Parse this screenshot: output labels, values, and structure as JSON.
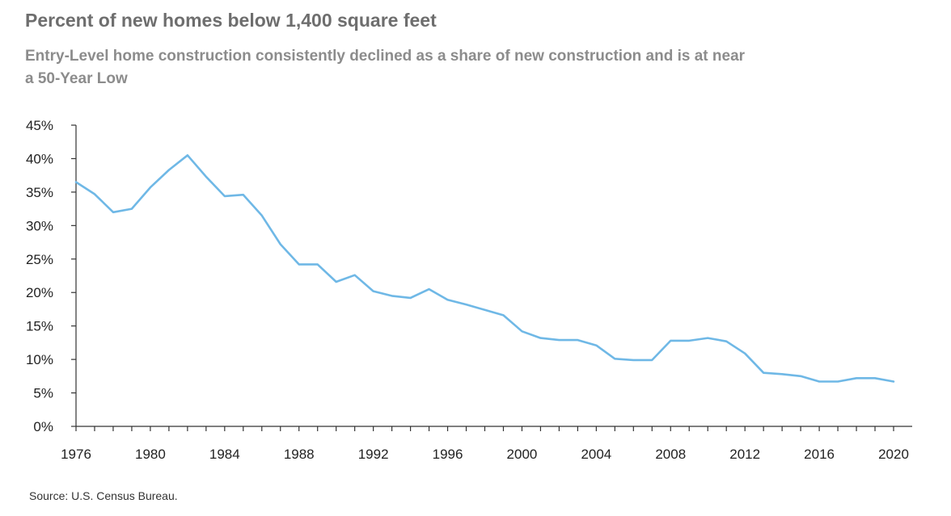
{
  "title": "Percent of new homes below 1,400 square feet",
  "subtitle": "Entry-Level home construction consistently declined as a share of new construction and is at near a 50-Year Low",
  "source": "Source: U.S. Census Bureau.",
  "colors": {
    "line": "#6fb8e6",
    "axis": "#333333",
    "title": "#6e6e6e",
    "subtitle": "#8c8c8c"
  },
  "chart_data": {
    "type": "line",
    "title": "Percent of new homes below 1,400 square feet",
    "xlabel": "",
    "ylabel": "",
    "xlim": [
      1976,
      2020
    ],
    "ylim": [
      0,
      45
    ],
    "grid": false,
    "x_ticks": [
      1976,
      1980,
      1984,
      1988,
      1992,
      1996,
      2000,
      2004,
      2008,
      2012,
      2016,
      2020
    ],
    "y_ticks": [
      "0%",
      "5%",
      "10%",
      "15%",
      "20%",
      "25%",
      "30%",
      "35%",
      "40%",
      "45%"
    ],
    "x": [
      1976,
      1977,
      1978,
      1979,
      1980,
      1981,
      1982,
      1983,
      1984,
      1985,
      1986,
      1987,
      1988,
      1989,
      1990,
      1991,
      1992,
      1993,
      1994,
      1995,
      1996,
      1997,
      1998,
      1999,
      2000,
      2001,
      2002,
      2003,
      2004,
      2005,
      2006,
      2007,
      2008,
      2009,
      2010,
      2011,
      2012,
      2013,
      2014,
      2015,
      2016,
      2017,
      2018,
      2019,
      2020
    ],
    "series": [
      {
        "values": [
          36.5,
          34.7,
          32.0,
          32.5,
          35.7,
          38.3,
          40.5,
          37.3,
          34.4,
          34.6,
          31.5,
          27.2,
          24.2,
          24.2,
          21.6,
          22.6,
          20.2,
          19.5,
          19.2,
          20.5,
          18.9,
          18.2,
          17.4,
          16.6,
          14.2,
          13.2,
          12.9,
          12.9,
          12.1,
          10.1,
          9.9,
          9.9,
          12.8,
          12.8,
          13.2,
          12.7,
          10.9,
          8.0,
          7.8,
          7.5,
          6.7,
          6.7,
          7.2,
          7.2,
          6.7
        ]
      }
    ]
  }
}
